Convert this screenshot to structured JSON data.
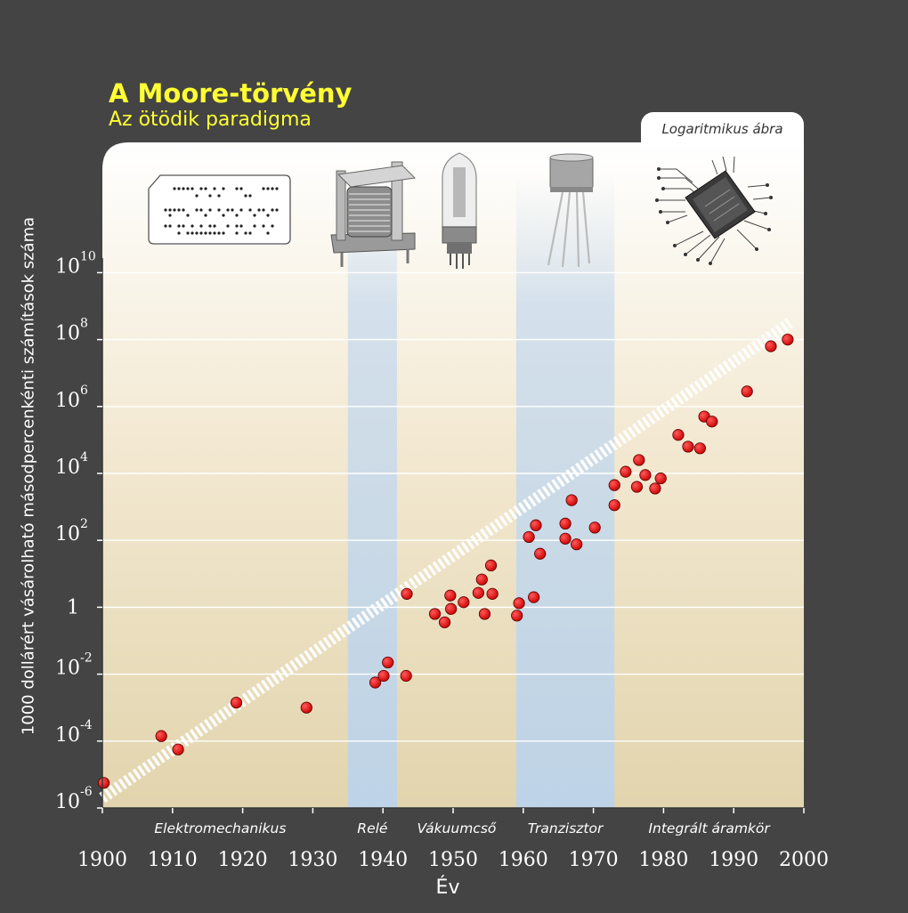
{
  "header": {
    "title": "A Moore-törvény",
    "subtitle": "Az ötödik paradigma",
    "log_tag": "Logaritmikus ábra"
  },
  "colors": {
    "background": "#444444",
    "title": "#ffff33",
    "point": "#dd0000",
    "trend": "#ffffff",
    "paradigm_band": "#bcd3ea"
  },
  "icons": [
    "punched-card-icon",
    "relay-icon",
    "vacuum-tube-icon",
    "transistor-icon",
    "integrated-circuit-icon"
  ],
  "chart_data": {
    "type": "scatter",
    "title": "A Moore-törvény",
    "subtitle": "Az ötödik paradigma",
    "xlabel": "Év",
    "ylabel": "1000 dollárért vásárolható másodpercenkénti számítások száma",
    "y_scale": "log10",
    "xlim": [
      1900,
      2000
    ],
    "ylim": [
      -6,
      11
    ],
    "x_ticks": [
      {
        "value": 1900,
        "label": "1900"
      },
      {
        "value": 1910,
        "label": "1910"
      },
      {
        "value": 1920,
        "label": "1920"
      },
      {
        "value": 1930,
        "label": "1930"
      },
      {
        "value": 1940,
        "label": "1940"
      },
      {
        "value": 1950,
        "label": "1950"
      },
      {
        "value": 1960,
        "label": "1960"
      },
      {
        "value": 1970,
        "label": "1970"
      },
      {
        "value": 1980,
        "label": "1980"
      },
      {
        "value": 1990,
        "label": "1990"
      },
      {
        "value": 2000,
        "label": "2000"
      }
    ],
    "y_ticks": [
      {
        "exp": -6,
        "base": "10",
        "sup": "-6"
      },
      {
        "exp": -4,
        "base": "10",
        "sup": "-4"
      },
      {
        "exp": -2,
        "base": "10",
        "sup": "-2"
      },
      {
        "exp": 0,
        "base": "1",
        "sup": ""
      },
      {
        "exp": 2,
        "base": "10",
        "sup": "2"
      },
      {
        "exp": 4,
        "base": "10",
        "sup": "4"
      },
      {
        "exp": 6,
        "base": "10",
        "sup": "6"
      },
      {
        "exp": 8,
        "base": "10",
        "sup": "8"
      },
      {
        "exp": 10,
        "base": "10",
        "sup": "10"
      }
    ],
    "grid": "horizontal",
    "paradigms": [
      {
        "label": "Elektromechanikus",
        "start": 1900,
        "end": 1935,
        "highlight": false
      },
      {
        "label": "Relé",
        "start": 1935,
        "end": 1942,
        "highlight": true
      },
      {
        "label": "Vákuumcső",
        "start": 1942,
        "end": 1959,
        "highlight": false
      },
      {
        "label": "Tranzisztor",
        "start": 1959,
        "end": 1973,
        "highlight": true
      },
      {
        "label": "Integrált áramkör",
        "start": 1973,
        "end": 2000,
        "highlight": false
      }
    ],
    "trend": {
      "x": [
        1900,
        1998
      ],
      "log10_y": [
        -5.7,
        8.5
      ]
    },
    "points": [
      {
        "x": 1900.2,
        "log10_y": -5.25
      },
      {
        "x": 1908.4,
        "log10_y": -3.85
      },
      {
        "x": 1910.8,
        "log10_y": -4.25
      },
      {
        "x": 1919.1,
        "log10_y": -2.85
      },
      {
        "x": 1929.1,
        "log10_y": -3.0
      },
      {
        "x": 1938.9,
        "log10_y": -2.25
      },
      {
        "x": 1940.1,
        "log10_y": -2.05
      },
      {
        "x": 1940.7,
        "log10_y": -1.65
      },
      {
        "x": 1943.3,
        "log10_y": -2.05
      },
      {
        "x": 1943.4,
        "log10_y": 0.4
      },
      {
        "x": 1947.4,
        "log10_y": -0.2
      },
      {
        "x": 1948.8,
        "log10_y": -0.45
      },
      {
        "x": 1949.6,
        "log10_y": 0.35
      },
      {
        "x": 1949.7,
        "log10_y": -0.05
      },
      {
        "x": 1951.5,
        "log10_y": 0.15
      },
      {
        "x": 1953.6,
        "log10_y": 0.43
      },
      {
        "x": 1954.1,
        "log10_y": 0.83
      },
      {
        "x": 1954.5,
        "log10_y": -0.2
      },
      {
        "x": 1955.4,
        "log10_y": 1.25
      },
      {
        "x": 1955.6,
        "log10_y": 0.4
      },
      {
        "x": 1959.1,
        "log10_y": -0.25
      },
      {
        "x": 1959.4,
        "log10_y": 0.12
      },
      {
        "x": 1960.8,
        "log10_y": 2.1
      },
      {
        "x": 1961.5,
        "log10_y": 0.3
      },
      {
        "x": 1961.8,
        "log10_y": 2.45
      },
      {
        "x": 1962.4,
        "log10_y": 1.6
      },
      {
        "x": 1966.0,
        "log10_y": 2.5
      },
      {
        "x": 1966.0,
        "log10_y": 2.05
      },
      {
        "x": 1966.9,
        "log10_y": 3.2
      },
      {
        "x": 1967.6,
        "log10_y": 1.88
      },
      {
        "x": 1970.2,
        "log10_y": 2.38
      },
      {
        "x": 1973.0,
        "log10_y": 3.05
      },
      {
        "x": 1973.0,
        "log10_y": 3.65
      },
      {
        "x": 1974.6,
        "log10_y": 4.05
      },
      {
        "x": 1976.2,
        "log10_y": 3.6
      },
      {
        "x": 1976.5,
        "log10_y": 4.4
      },
      {
        "x": 1977.4,
        "log10_y": 3.95
      },
      {
        "x": 1978.8,
        "log10_y": 3.55
      },
      {
        "x": 1979.6,
        "log10_y": 3.85
      },
      {
        "x": 1982.1,
        "log10_y": 5.15
      },
      {
        "x": 1983.5,
        "log10_y": 4.8
      },
      {
        "x": 1985.2,
        "log10_y": 4.75
      },
      {
        "x": 1985.8,
        "log10_y": 5.7
      },
      {
        "x": 1986.9,
        "log10_y": 5.55
      },
      {
        "x": 1991.9,
        "log10_y": 6.45
      },
      {
        "x": 1995.3,
        "log10_y": 7.8
      },
      {
        "x": 1997.7,
        "log10_y": 8.0
      }
    ]
  }
}
